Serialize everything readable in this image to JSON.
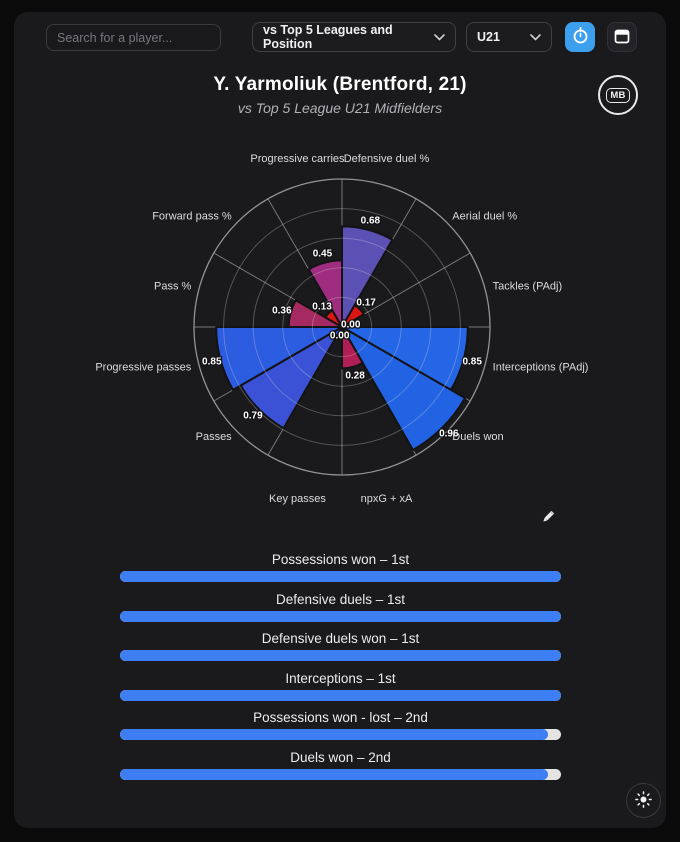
{
  "header": {
    "search_placeholder": "Search for a player...",
    "league_filter_value": "vs Top 5 Leagues and Position",
    "age_filter_value": "U21"
  },
  "title": {
    "main": "Y. Yarmoliuk (Brentford, 21)",
    "subtitle": "vs Top 5 League U21 Midfielders"
  },
  "logo_text": "MB",
  "chart_data": {
    "type": "pizza-polar-bar",
    "value_range": [
      0,
      1
    ],
    "rings": [
      0.2,
      0.4,
      0.6,
      0.8,
      1.0
    ],
    "slice_span_deg": 30,
    "start_at_top_clockwise": true,
    "categories": [
      "Defensive duel %",
      "Aerial duel %",
      "Tackles (PAdj)",
      "Interceptions (PAdj)",
      "Duels won",
      "npxG + xA",
      "Key passes",
      "Passes",
      "Progressive passes",
      "Pass %",
      "Forward pass %",
      "Progressive carries"
    ],
    "values": [
      0.68,
      0.17,
      0.0,
      0.85,
      0.96,
      0.28,
      0.0,
      0.79,
      0.85,
      0.36,
      0.13,
      0.45
    ],
    "value_labels": [
      "0.68",
      "0.17",
      "0.00",
      "0.85",
      "0.96",
      "0.28",
      "0.00",
      "0.79",
      "0.85",
      "0.36",
      "0.13",
      "0.45"
    ],
    "slice_colors": [
      "#5b51b5",
      "#dd1614",
      "#2563e0",
      "#2566e6",
      "#2263e4",
      "#b01e56",
      "#b01e56",
      "#3b52d6",
      "#2c5ce0",
      "#a62a62",
      "#dd1614",
      "#a02c80"
    ],
    "grid_color": "#8f8f92",
    "outer_ring_color": "#9a9a9d",
    "label_color": "#dcdcde"
  },
  "rankings": [
    {
      "label": "Possessions won – 1st",
      "percent": 100
    },
    {
      "label": "Defensive duels – 1st",
      "percent": 100
    },
    {
      "label": "Defensive duels won – 1st",
      "percent": 100
    },
    {
      "label": "Interceptions – 1st",
      "percent": 100
    },
    {
      "label": "Possessions won - lost – 2nd",
      "percent": 97
    },
    {
      "label": "Duels won – 2nd",
      "percent": 97
    }
  ],
  "colors": {
    "accent_button": "#3da0ee",
    "bar_fill": "#3d7ef2",
    "bar_track": "#e4e4e1",
    "card_bg": "#1a1a1c",
    "page_bg": "#0a0a0b"
  },
  "icons": {
    "timer": "stopwatch-icon",
    "calendar": "calendar-icon",
    "edit": "pencil-icon",
    "theme": "sun-icon",
    "dropdown": "chevron-down-icon"
  }
}
